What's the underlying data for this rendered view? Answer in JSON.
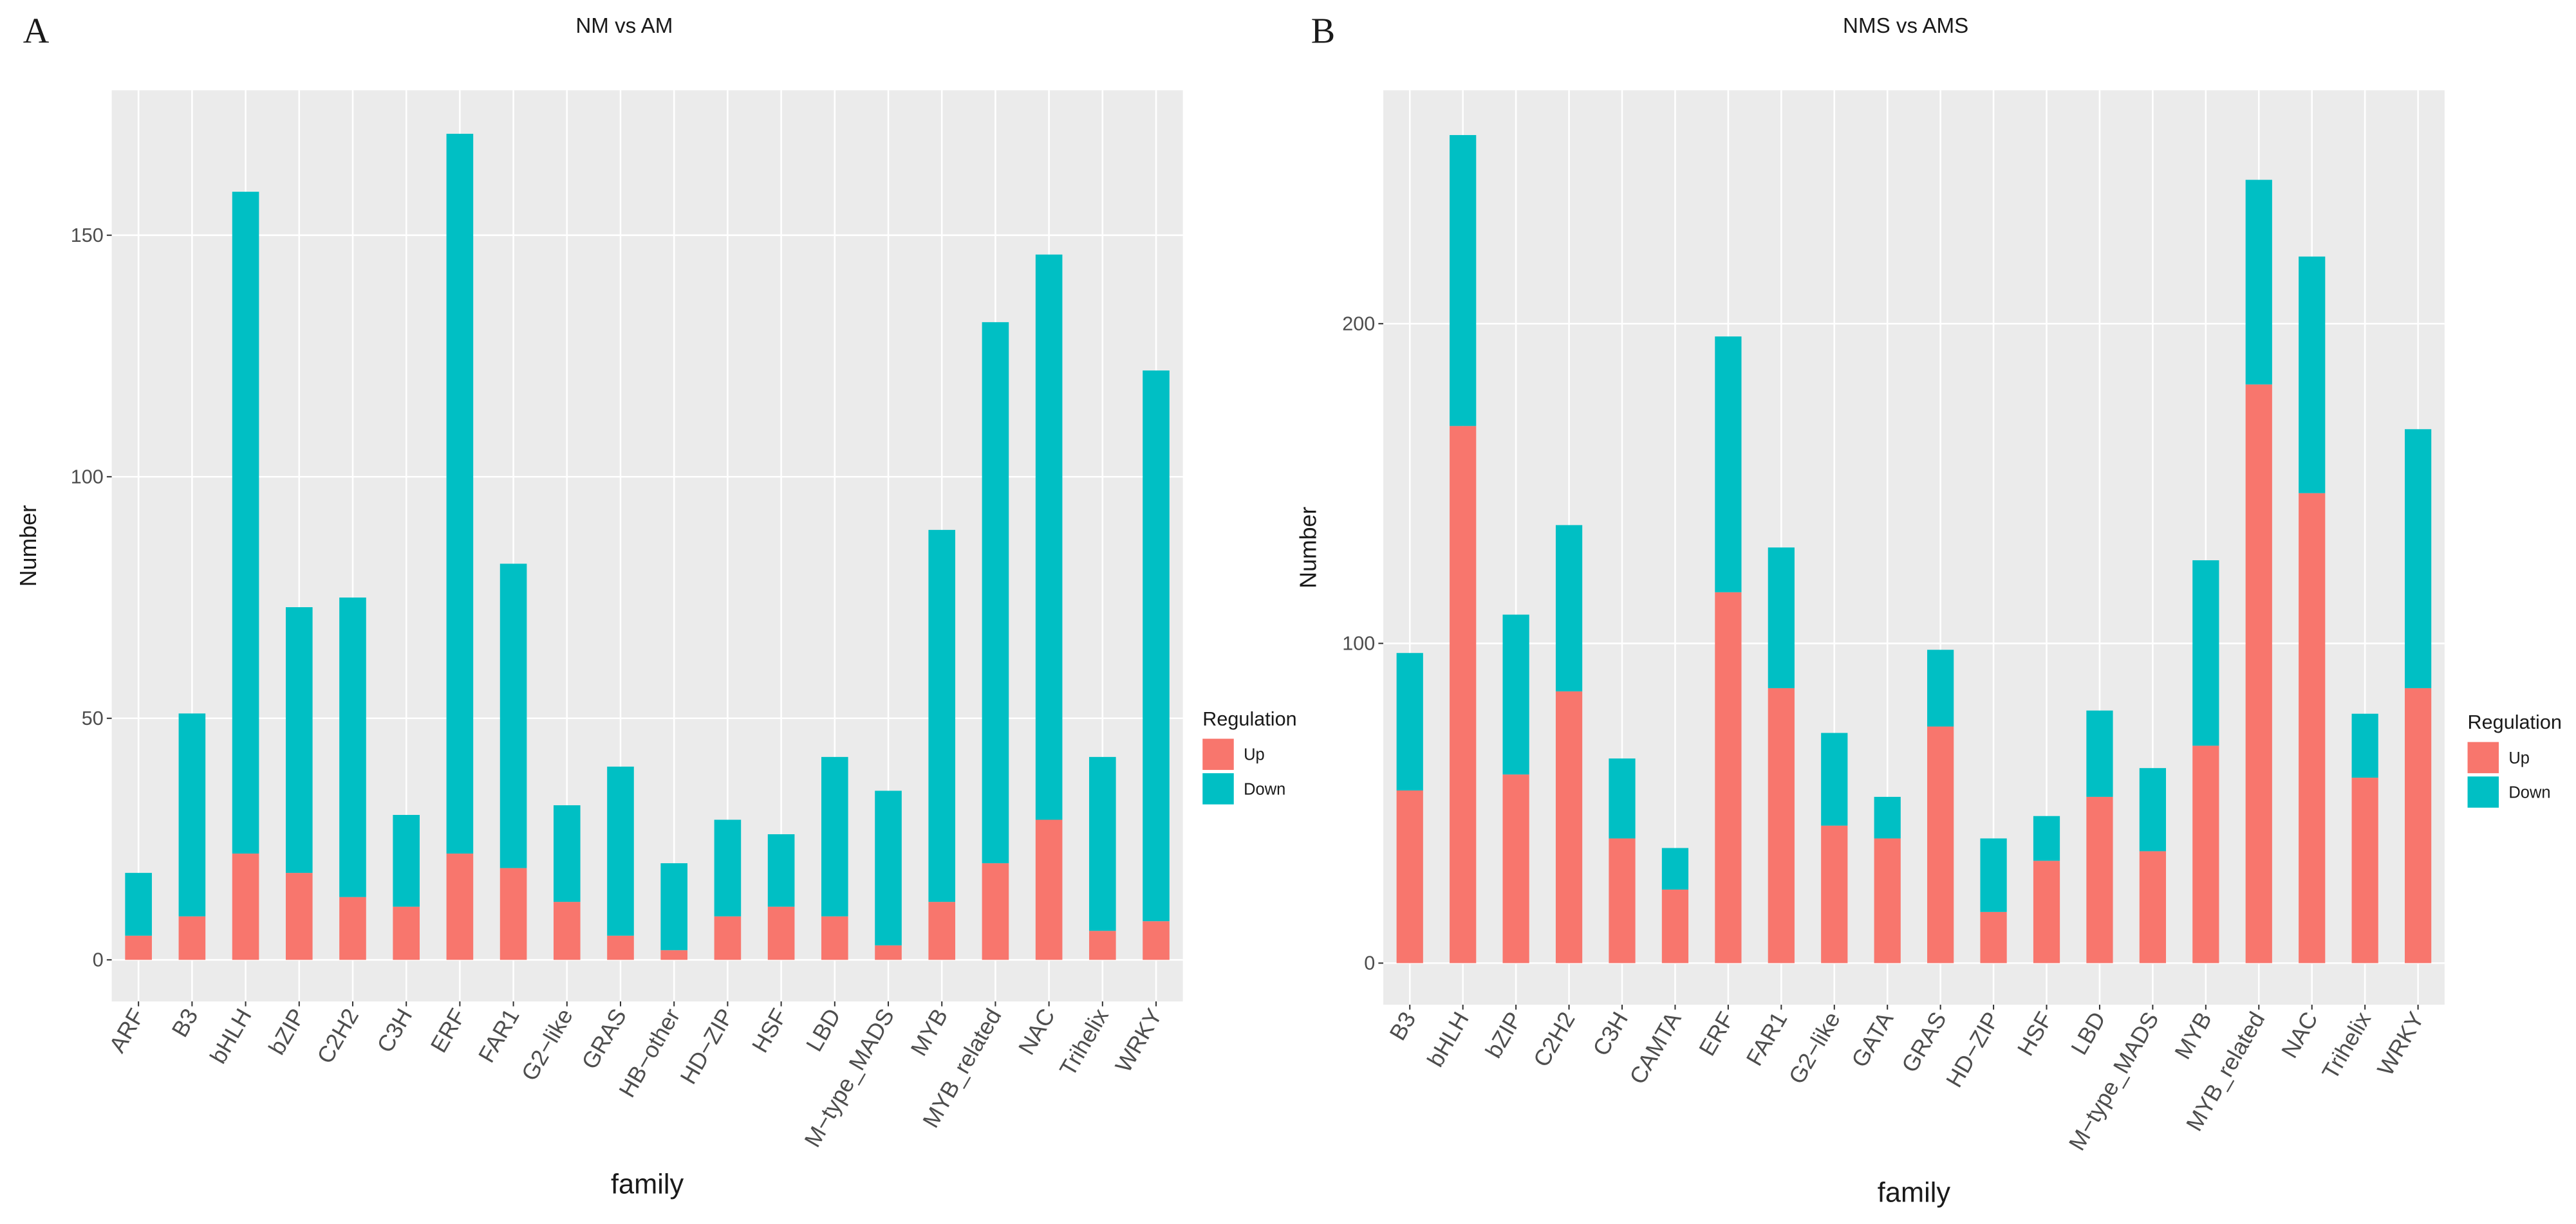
{
  "chart_data": [
    {
      "type": "bar",
      "stacked": true,
      "panel_label": "A",
      "title": "NM vs AM",
      "x_label": "family",
      "y_label": "Number",
      "categories": [
        "ARF",
        "B3",
        "bHLH",
        "bZIP",
        "C2H2",
        "C3H",
        "ERF",
        "FAR1",
        "G2−like",
        "GRAS",
        "HB−other",
        "HD−ZIP",
        "HSF",
        "LBD",
        "M−type_MADS",
        "MYB",
        "MYB_related",
        "NAC",
        "Trihelix",
        "WRKY"
      ],
      "series": [
        {
          "name": "Up",
          "color": "#F8766D",
          "values": [
            5,
            9,
            22,
            18,
            13,
            11,
            22,
            19,
            12,
            5,
            2,
            9,
            11,
            9,
            3,
            12,
            20,
            29,
            6,
            8
          ]
        },
        {
          "name": "Down",
          "color": "#00BFC4",
          "values": [
            13,
            42,
            137,
            55,
            62,
            19,
            149,
            63,
            20,
            35,
            18,
            20,
            15,
            33,
            32,
            77,
            112,
            117,
            36,
            114
          ]
        }
      ],
      "ylim": [
        -8.6,
        180
      ],
      "yticks": [
        0,
        50,
        100,
        150
      ],
      "grid": true,
      "legend_title": "Regulation",
      "legend": "right"
    },
    {
      "type": "bar",
      "stacked": true,
      "panel_label": "B",
      "title": "NMS vs AMS",
      "x_label": "family",
      "y_label": "Number",
      "categories": [
        "B3",
        "bHLH",
        "bZIP",
        "C2H2",
        "C3H",
        "CAMTA",
        "ERF",
        "FAR1",
        "G2−like",
        "GATA",
        "GRAS",
        "HD−ZIP",
        "HSF",
        "LBD",
        "M−type_MADS",
        "MYB",
        "MYB_related",
        "NAC",
        "Trihelix",
        "WRKY"
      ],
      "series": [
        {
          "name": "Up",
          "color": "#F8766D",
          "values": [
            54,
            168,
            59,
            85,
            39,
            23,
            116,
            86,
            43,
            39,
            74,
            16,
            32,
            52,
            35,
            68,
            181,
            147,
            58,
            86
          ]
        },
        {
          "name": "Down",
          "color": "#00BFC4",
          "values": [
            43,
            91,
            50,
            52,
            25,
            13,
            80,
            44,
            29,
            13,
            24,
            23,
            14,
            27,
            26,
            58,
            64,
            74,
            20,
            81
          ]
        }
      ],
      "ylim": [
        -13,
        273
      ],
      "yticks": [
        0,
        100,
        200
      ],
      "grid": true,
      "legend_title": "Regulation",
      "legend": "right"
    }
  ]
}
